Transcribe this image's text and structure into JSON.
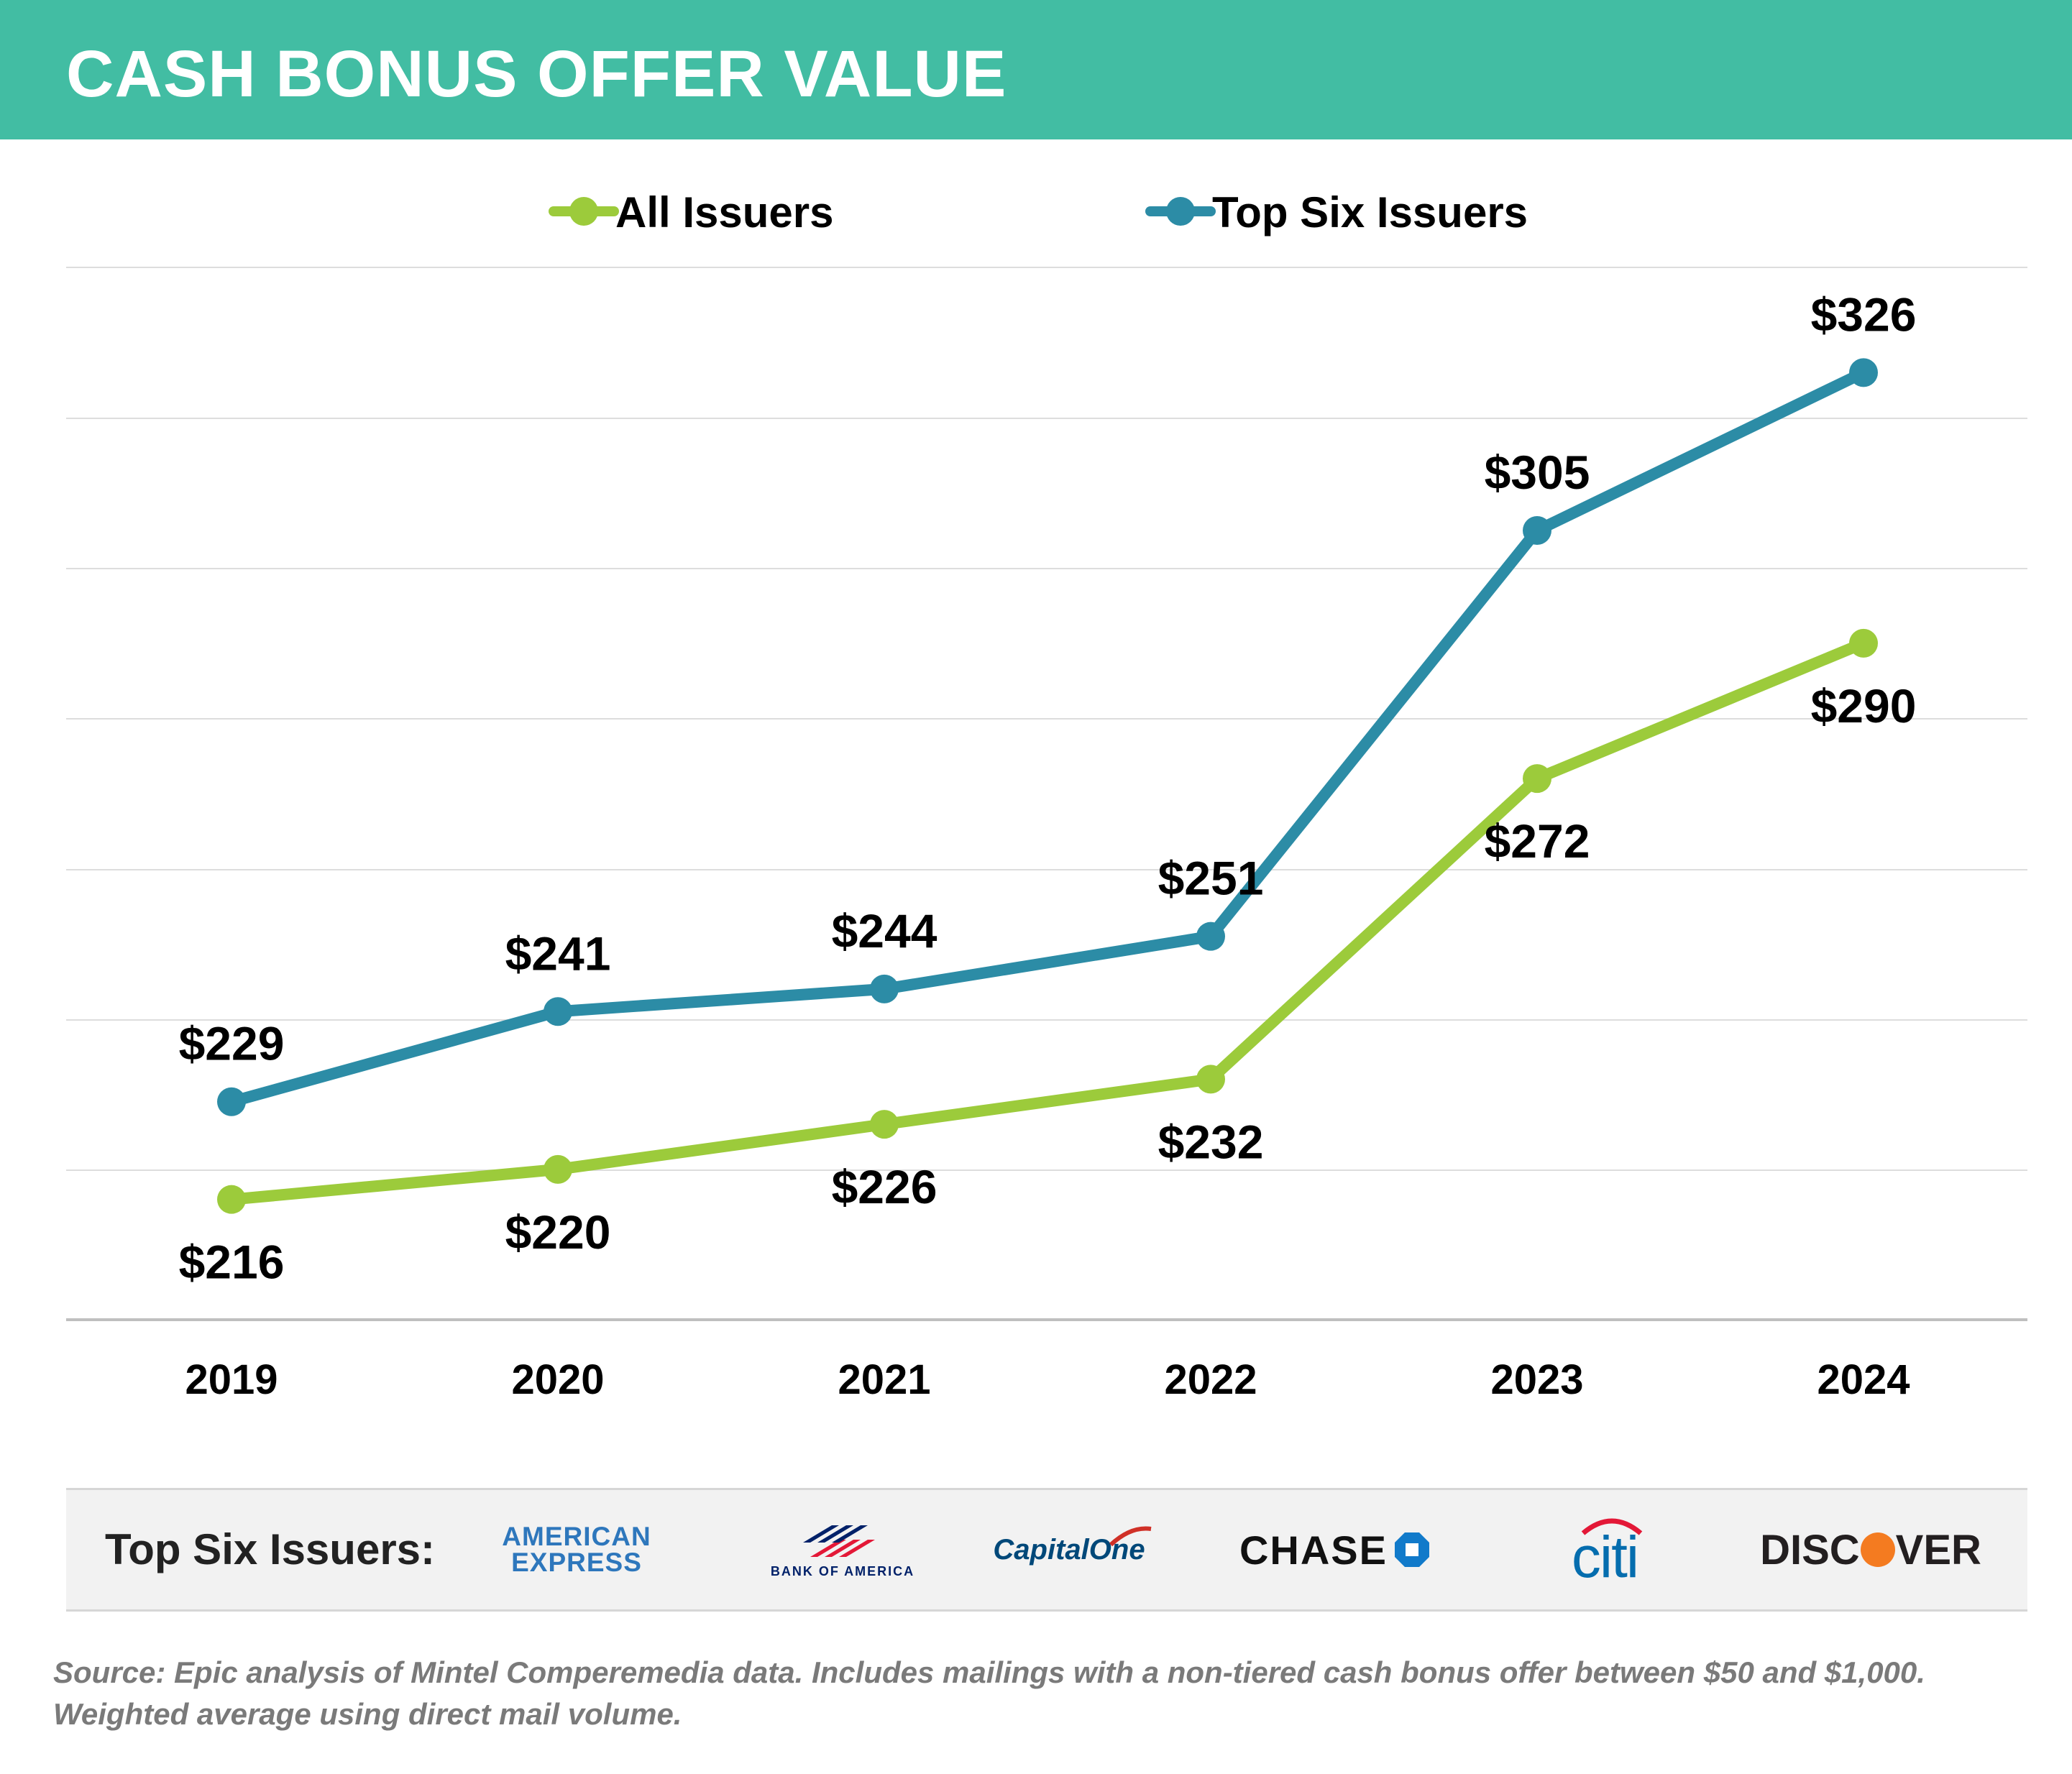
{
  "header": {
    "title": "CASH BONUS OFFER VALUE"
  },
  "colors": {
    "header_bg": "#42BDA3",
    "all_issuers": "#9CCB3B",
    "top_six": "#2C8CA6",
    "grid": "#dddddd",
    "axis": "#bfbfbf"
  },
  "chart_data": {
    "type": "line",
    "categories": [
      "2019",
      "2020",
      "2021",
      "2022",
      "2023",
      "2024"
    ],
    "series": [
      {
        "name": "All Issuers",
        "values": [
          216,
          220,
          226,
          232,
          272,
          290
        ],
        "labels": [
          "$216",
          "$220",
          "$226",
          "$232",
          "$272",
          "$290"
        ]
      },
      {
        "name": "Top Six Issuers",
        "values": [
          229,
          241,
          244,
          251,
          305,
          326
        ],
        "labels": [
          "$229",
          "$241",
          "$244",
          "$251",
          "$305",
          "$326"
        ]
      }
    ],
    "ylim": [
      200,
      340
    ],
    "grid": true,
    "legend_position": "top"
  },
  "issuers": {
    "title": "Top Six Issuers:",
    "logos": [
      {
        "name": "amex",
        "line1": "AMERICAN",
        "line2": "EXPRESS"
      },
      {
        "name": "bank-of-america",
        "text": "BANK OF AMERICA"
      },
      {
        "name": "capital-one",
        "text": "CapitalOne"
      },
      {
        "name": "chase",
        "text": "CHASE"
      },
      {
        "name": "citi",
        "text": "citi"
      },
      {
        "name": "discover",
        "pre": "DISC",
        "post": "VER"
      }
    ]
  },
  "footnote": "Source: Epic analysis of Mintel Comperemedia data. Includes mailings with a non-tiered cash bonus offer between $50 and $1,000. Weighted average using direct mail volume."
}
